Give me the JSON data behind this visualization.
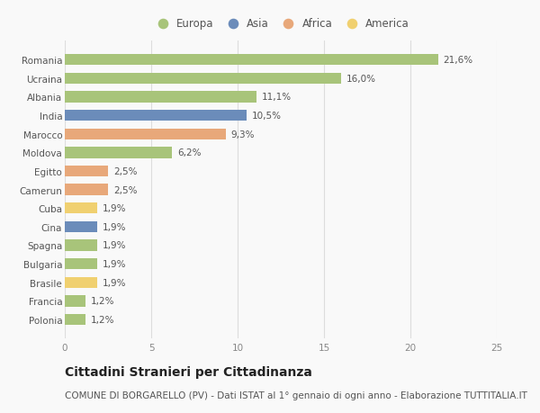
{
  "categories": [
    "Romania",
    "Ucraina",
    "Albania",
    "India",
    "Marocco",
    "Moldova",
    "Egitto",
    "Camerun",
    "Cuba",
    "Cina",
    "Spagna",
    "Bulgaria",
    "Brasile",
    "Francia",
    "Polonia"
  ],
  "values": [
    21.6,
    16.0,
    11.1,
    10.5,
    9.3,
    6.2,
    2.5,
    2.5,
    1.9,
    1.9,
    1.9,
    1.9,
    1.9,
    1.2,
    1.2
  ],
  "labels": [
    "21,6%",
    "16,0%",
    "11,1%",
    "10,5%",
    "9,3%",
    "6,2%",
    "2,5%",
    "2,5%",
    "1,9%",
    "1,9%",
    "1,9%",
    "1,9%",
    "1,9%",
    "1,2%",
    "1,2%"
  ],
  "continents": [
    "Europa",
    "Europa",
    "Europa",
    "Asia",
    "Africa",
    "Europa",
    "Africa",
    "Africa",
    "America",
    "Asia",
    "Europa",
    "Europa",
    "America",
    "Europa",
    "Europa"
  ],
  "continent_colors": {
    "Europa": "#a8c47a",
    "Asia": "#6b8cba",
    "Africa": "#e8a87a",
    "America": "#f0d070"
  },
  "legend_order": [
    "Europa",
    "Asia",
    "Africa",
    "America"
  ],
  "xlim": [
    0,
    25
  ],
  "xticks": [
    0,
    5,
    10,
    15,
    20,
    25
  ],
  "title": "Cittadini Stranieri per Cittadinanza",
  "subtitle": "COMUNE DI BORGARELLO (PV) - Dati ISTAT al 1° gennaio di ogni anno - Elaborazione TUTTITALIA.IT",
  "background_color": "#f9f9f9",
  "bar_height": 0.6,
  "title_fontsize": 10,
  "subtitle_fontsize": 7.5,
  "label_fontsize": 7.5,
  "tick_fontsize": 7.5,
  "legend_fontsize": 8.5
}
